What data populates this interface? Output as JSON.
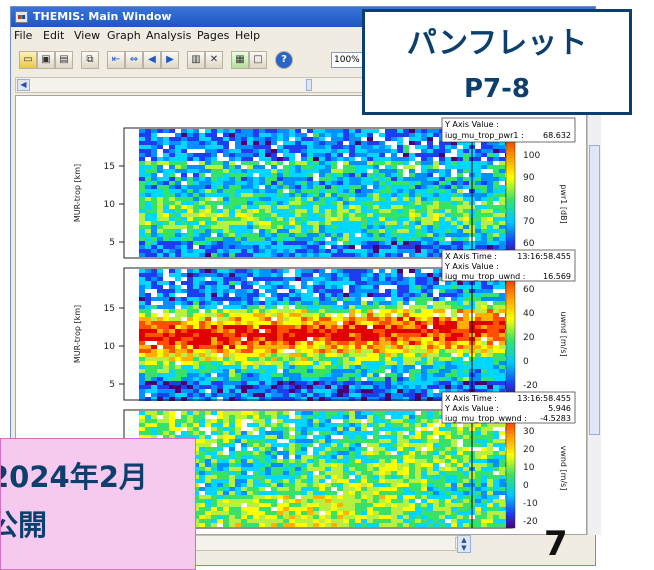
{
  "window": {
    "title": "THEMIS: Main Window",
    "menu": [
      "File",
      "Edit",
      "View",
      "Graph",
      "Analysis",
      "Pages",
      "Help"
    ],
    "zoom": "100%"
  },
  "panels": [
    {
      "ylabel": "MUR-trop [km]",
      "yticks": [
        "15",
        "10",
        "5"
      ],
      "colorbar_label": "pwr1\n[dB]",
      "colorbar_ticks": [
        "100",
        "90",
        "80",
        "70",
        "60"
      ],
      "readout": {
        "y_caption": "Y Axis Value :",
        "var": "iug_mu_trop_pwr1 :",
        "value": "68.632"
      }
    },
    {
      "ylabel": "MUR-trop [km]",
      "yticks": [
        "15",
        "10",
        "5"
      ],
      "colorbar_label": "uwnd\n[m/s]",
      "colorbar_ticks": [
        "60",
        "40",
        "20",
        "0",
        "-20"
      ],
      "readout": {
        "x_caption": "X Axis Time :",
        "x_value": "13:16:58.455",
        "y_caption": "Y Axis Value :",
        "var": "iug_mu_trop_uwnd :",
        "value": "16.569"
      }
    },
    {
      "ylabel": "",
      "yticks": [],
      "colorbar_label": "vwnd\n[m/s]",
      "colorbar_ticks": [
        "30",
        "20",
        "10",
        "0",
        "-10",
        "-20"
      ],
      "readout": {
        "x_caption": "X Axis Time :",
        "x_value": "13:16:58.455",
        "y_caption": "Y Axis Value :",
        "var": "iug_mu_trop_wwnd :",
        "value": "-4.5283",
        "y_value": "5.946"
      }
    }
  ],
  "overlays": {
    "pamphlet_line1": "パンフレット",
    "pamphlet_line2": "P7-8",
    "release_line1": "2024年2月",
    "release_line2": "公開"
  },
  "page_number": "7",
  "colors": {
    "title_blue": "#1d56c0",
    "overlay_navy": "#0d3f6e",
    "overlay_pink": "#f6c9ee"
  }
}
